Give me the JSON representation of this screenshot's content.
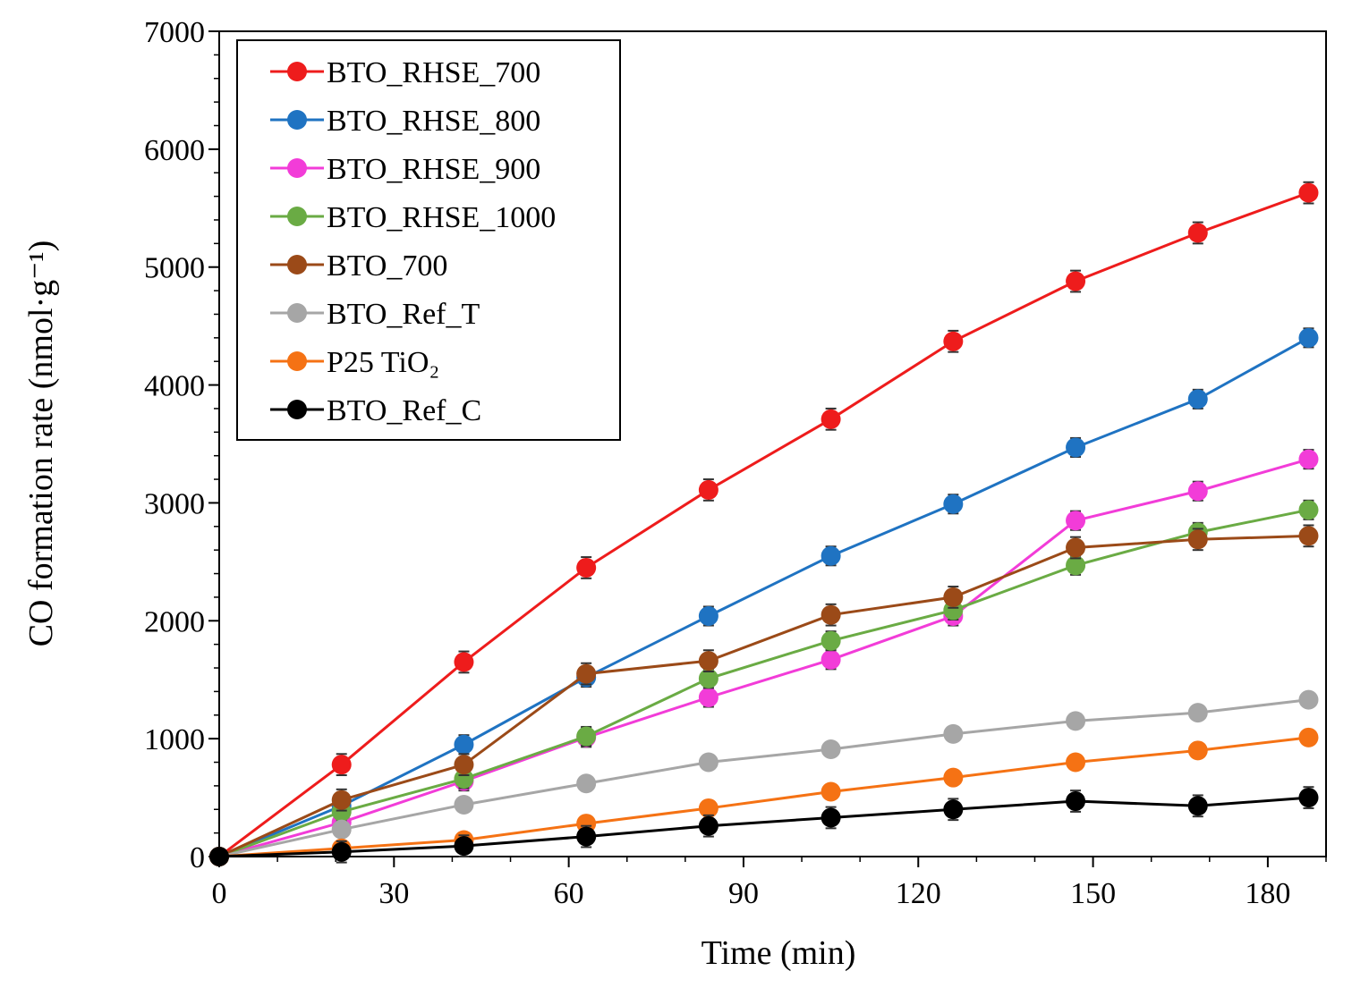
{
  "chart_data": {
    "type": "line",
    "title": "",
    "xlabel": "Time (min)",
    "ylabel": "CO formation rate (nmol·g⁻¹)",
    "xlim": [
      0,
      190
    ],
    "ylim": [
      0,
      7000
    ],
    "x_ticks": [
      "0",
      "30",
      "60",
      "90",
      "120",
      "150",
      "180"
    ],
    "y_ticks": [
      "0",
      "1000",
      "2000",
      "3000",
      "4000",
      "5000",
      "6000",
      "7000"
    ],
    "grid": false,
    "legend_position": "top-left",
    "x": [
      0,
      21,
      42,
      63,
      84,
      105,
      126,
      147,
      168,
      187
    ],
    "series": [
      {
        "name": "BTO_RHSE_700",
        "color": "#ee1c1c",
        "values": [
          0,
          780,
          1650,
          2450,
          3110,
          3710,
          4370,
          4880,
          5290,
          5630
        ],
        "error": 90
      },
      {
        "name": "BTO_RHSE_800",
        "color": "#1f73c2",
        "values": [
          0,
          430,
          950,
          1520,
          2040,
          2550,
          2990,
          3470,
          3880,
          4400
        ],
        "error": 80
      },
      {
        "name": "BTO_RHSE_900",
        "color": "#f23cd8",
        "values": [
          0,
          290,
          640,
          1010,
          1350,
          1670,
          2040,
          2850,
          3100,
          3370
        ],
        "error": 80
      },
      {
        "name": "BTO_RHSE_1000",
        "color": "#6aab44",
        "values": [
          0,
          380,
          660,
          1020,
          1510,
          1830,
          2090,
          2470,
          2750,
          2940
        ],
        "error": 80
      },
      {
        "name": "BTO_700",
        "color": "#9b4a18",
        "values": [
          0,
          480,
          780,
          1550,
          1660,
          2050,
          2200,
          2620,
          2690,
          2720
        ],
        "error": 90
      },
      {
        "name": "BTO_Ref_T",
        "color": "#a6a6a6",
        "values": [
          0,
          230,
          440,
          620,
          800,
          910,
          1040,
          1150,
          1220,
          1330
        ],
        "error": 60
      },
      {
        "name": "P25 TiO₂",
        "color": "#f57214",
        "values": [
          0,
          70,
          140,
          280,
          410,
          550,
          670,
          800,
          900,
          1010
        ],
        "error": 50
      },
      {
        "name": "BTO_Ref_C",
        "color": "#000000",
        "values": [
          0,
          40,
          90,
          170,
          260,
          330,
          400,
          470,
          430,
          500
        ],
        "error": 90
      }
    ]
  }
}
